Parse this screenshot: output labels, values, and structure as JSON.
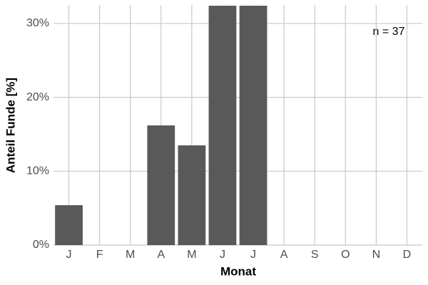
{
  "chart_data": {
    "type": "bar",
    "categories": [
      "J",
      "F",
      "M",
      "A",
      "M",
      "J",
      "J",
      "A",
      "S",
      "O",
      "N",
      "D"
    ],
    "values": [
      5.4,
      0,
      0,
      16.2,
      13.5,
      32.4,
      32.4,
      0,
      0,
      0,
      0,
      0
    ],
    "color": "#595959",
    "x_label": "Monat",
    "y_label": "Anteil Funde [%]",
    "annotation": "n = 37",
    "ylim": [
      0,
      32.5
    ],
    "yticks": [
      {
        "value": 0,
        "label": "0%"
      },
      {
        "value": 10,
        "label": "10%"
      },
      {
        "value": 20,
        "label": "20%"
      },
      {
        "value": 30,
        "label": "30%"
      }
    ],
    "grid": true
  }
}
